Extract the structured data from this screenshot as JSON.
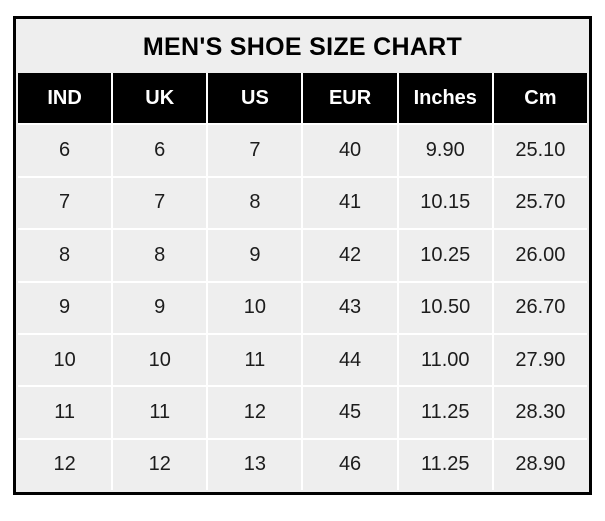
{
  "table": {
    "title": "MEN'S SHOE SIZE CHART",
    "columns": [
      "IND",
      "UK",
      "US",
      "EUR",
      "Inches",
      "Cm"
    ],
    "rows": [
      [
        "6",
        "6",
        "7",
        "40",
        "9.90",
        "25.10"
      ],
      [
        "7",
        "7",
        "8",
        "41",
        "10.15",
        "25.70"
      ],
      [
        "8",
        "8",
        "9",
        "42",
        "10.25",
        "26.00"
      ],
      [
        "9",
        "9",
        "10",
        "43",
        "10.50",
        "26.70"
      ],
      [
        "10",
        "10",
        "11",
        "44",
        "11.00",
        "27.90"
      ],
      [
        "11",
        "11",
        "12",
        "45",
        "11.25",
        "28.30"
      ],
      [
        "12",
        "12",
        "13",
        "46",
        "11.25",
        "28.90"
      ]
    ]
  },
  "chart_data": {
    "type": "table",
    "title": "MEN'S SHOE SIZE CHART",
    "columns": [
      "IND",
      "UK",
      "US",
      "EUR",
      "Inches",
      "Cm"
    ],
    "rows": [
      [
        "6",
        "6",
        "7",
        "40",
        "9.90",
        "25.10"
      ],
      [
        "7",
        "7",
        "8",
        "41",
        "10.15",
        "25.70"
      ],
      [
        "8",
        "8",
        "9",
        "42",
        "10.25",
        "26.00"
      ],
      [
        "9",
        "9",
        "10",
        "43",
        "10.50",
        "26.70"
      ],
      [
        "10",
        "10",
        "11",
        "44",
        "11.00",
        "27.90"
      ],
      [
        "11",
        "11",
        "12",
        "45",
        "11.25",
        "28.30"
      ],
      [
        "12",
        "12",
        "13",
        "46",
        "11.25",
        "28.90"
      ]
    ],
    "layout_hints": {
      "header_style": "black background, white bold text",
      "cell_style": "light gray background, dark text",
      "grid": "white 2px separators, thick black outer border"
    }
  },
  "colors": {
    "page_bg": "#ffffff",
    "table_bg": "#eeeeee",
    "header_bg": "#000000",
    "header_text": "#ffffff",
    "body_text": "#1c1c1c",
    "separator": "#ffffff",
    "outer_border": "#000000"
  }
}
